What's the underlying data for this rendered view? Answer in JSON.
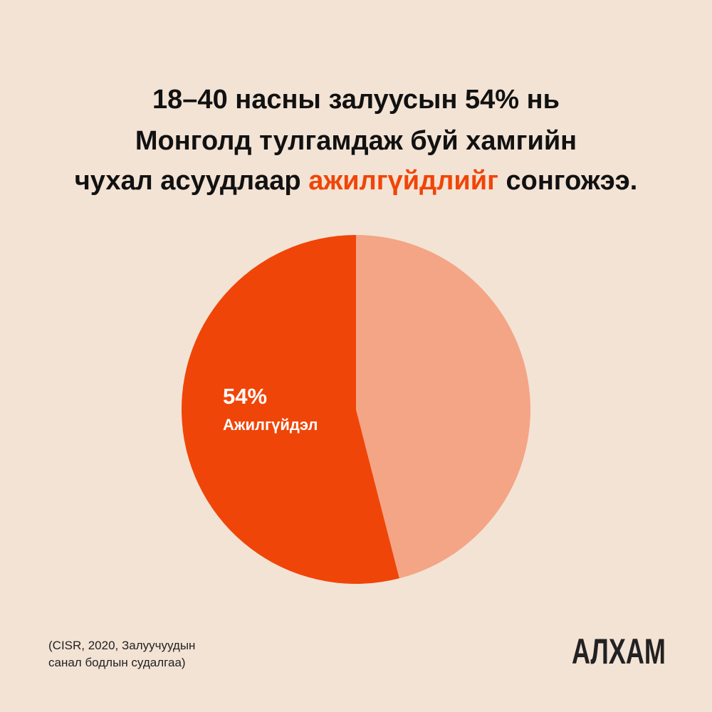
{
  "chart_data": {
    "type": "pie",
    "title_lines": [
      [
        "18–40 насны залуусын 54% нь"
      ],
      [
        "Монголд тулгамдаж буй хамгийн"
      ],
      [
        "чухал асуудлаар",
        "ажилгүйдлийг",
        "сонгожээ."
      ]
    ],
    "categories": [
      "Ажилгүйдэл",
      null
    ],
    "values": [
      54,
      46
    ],
    "value_labels": [
      "54%",
      null
    ],
    "colors": [
      "#f04508",
      "#f4a585"
    ],
    "source": [
      "(CISR, 2020, Залуучуудын",
      "санал бодлын судалгаа)"
    ],
    "brand": "АЛХАМ"
  }
}
